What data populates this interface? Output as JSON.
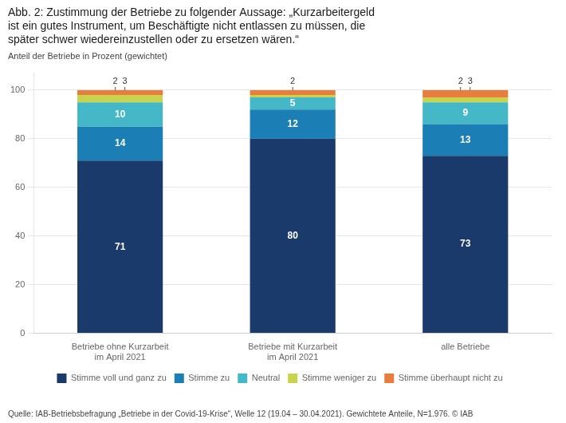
{
  "chart_data": {
    "type": "bar",
    "title": "Abb. 2: Zustimmung der Betriebe zu folgender Aussage: „Kurzarbeitergeld\nist ein gutes Instrument, um Beschäftigte nicht entlassen zu müssen, die\nspäter schwer wiedereinzustellen oder zu ersetzen wären.“",
    "subtitle": "Anteil der Betriebe in Prozent (gewichtet)",
    "categories": [
      "Betriebe ohne Kurzarbeit\nim April 2021",
      "Betriebe mit Kurzarbeit\nim April 2021",
      "alle Betriebe"
    ],
    "series": [
      {
        "name": "Stimme voll und ganz zu",
        "color": "#1a3a6b",
        "values": [
          71,
          80,
          73
        ]
      },
      {
        "name": "Stimme zu",
        "color": "#1b7eb5",
        "values": [
          14,
          12,
          13
        ]
      },
      {
        "name": "Neutral",
        "color": "#45b8c8",
        "values": [
          10,
          5,
          9
        ]
      },
      {
        "name": "Stimme weniger zu",
        "color": "#c8d44e",
        "values": [
          3,
          1,
          2
        ]
      },
      {
        "name": "Stimme überhaupt nicht zu",
        "color": "#e87d3e",
        "values": [
          2,
          2,
          3
        ]
      }
    ],
    "stacked": true,
    "ylim": [
      0,
      107
    ],
    "yticks": [
      0,
      20,
      40,
      60,
      80,
      100
    ],
    "grid": true,
    "legend": "bottom",
    "data_labels": true,
    "annotations": [
      {
        "x": "Betriebe ohne Kurzarbeit\nim April 2021",
        "text": "2"
      },
      {
        "x": "Betriebe ohne Kurzarbeit\nim April 2021",
        "text": "3"
      },
      {
        "x": "Betriebe mit Kurzarbeit\nim April 2021",
        "text": "2"
      },
      {
        "x": "alle Betriebe",
        "text": "2"
      },
      {
        "x": "alle Betriebe",
        "text": "3"
      }
    ],
    "source": "Quelle: IAB-Betriebsbefragung „Betriebe in der Covid-19-Krise“, Welle 12 (19.04 – 30.04.2021). Gewichtete Anteile, N=1.976. © IAB"
  }
}
